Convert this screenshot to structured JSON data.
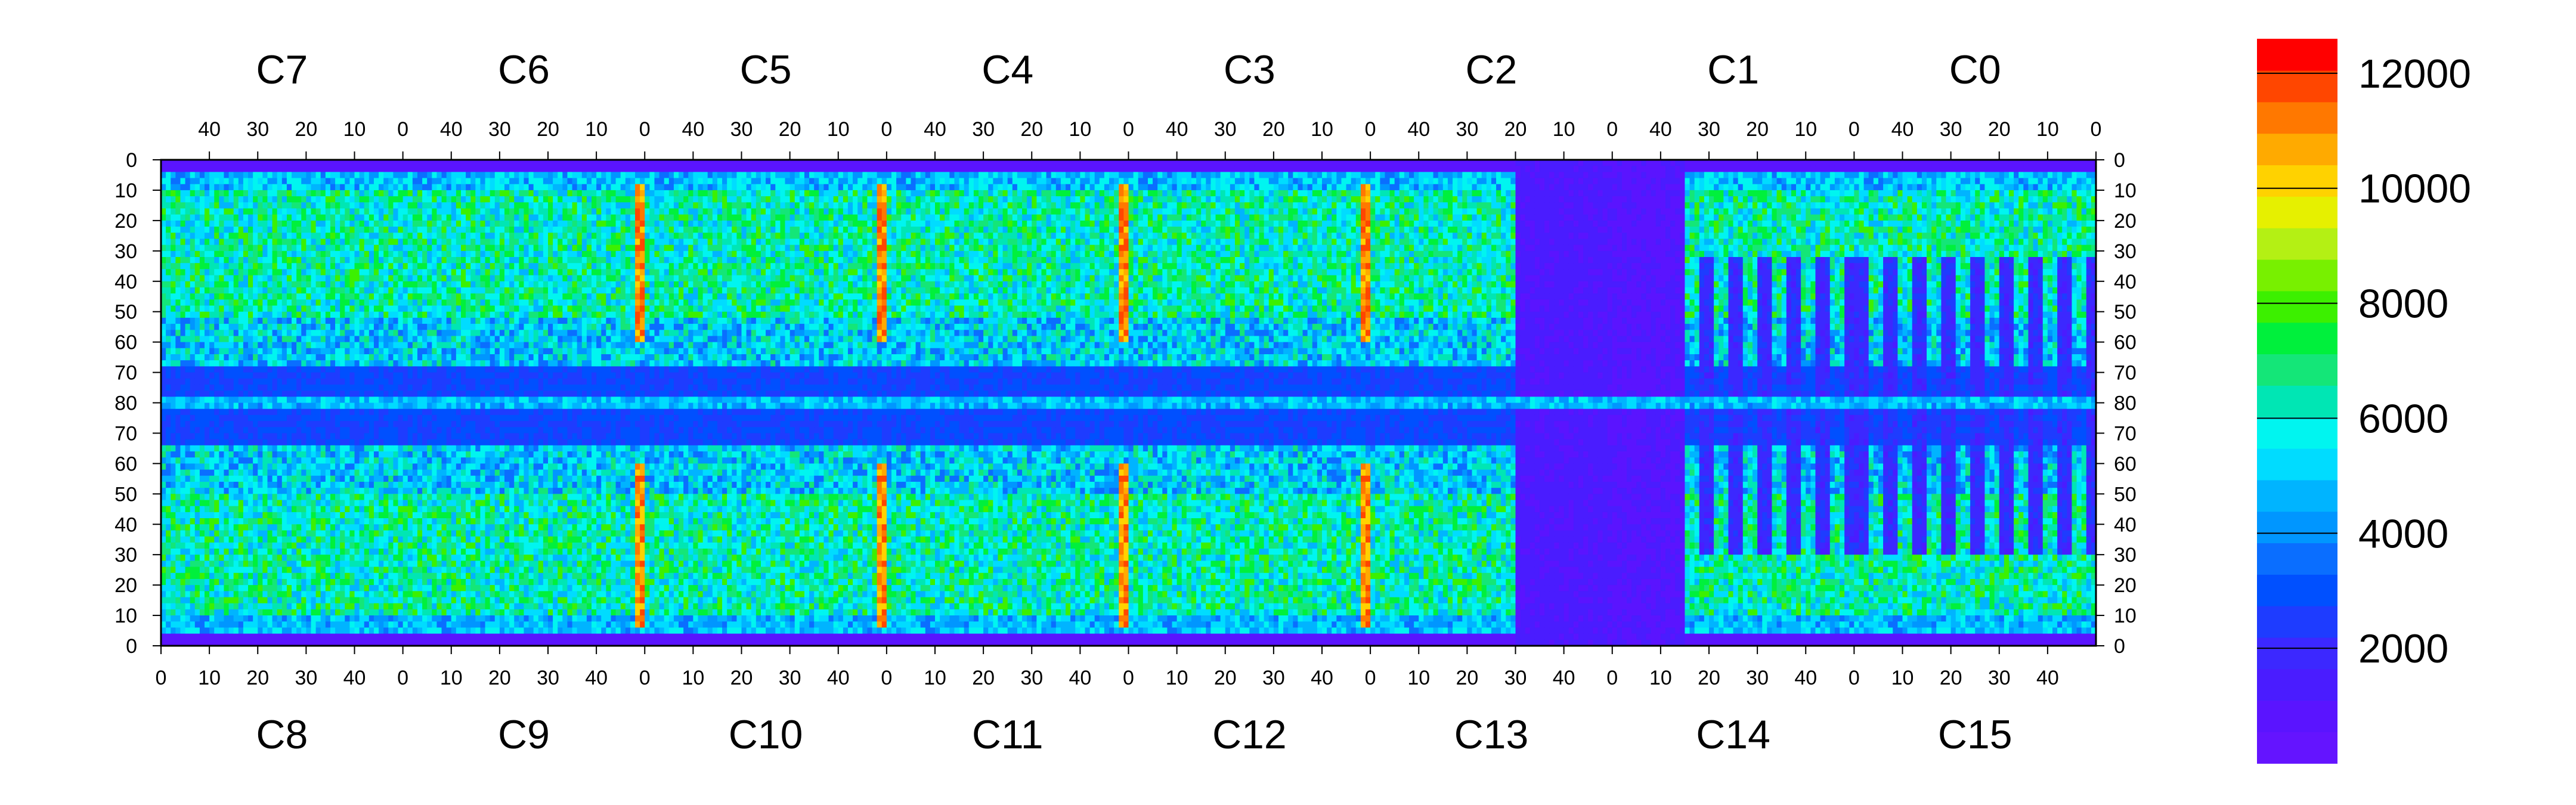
{
  "chart_data": {
    "type": "heatmap",
    "title": "",
    "xlabel": "",
    "ylabel": "",
    "top_panels": [
      "C7",
      "C6",
      "C5",
      "C4",
      "C3",
      "C2",
      "C1",
      "C0"
    ],
    "bottom_panels": [
      "C8",
      "C9",
      "C10",
      "C11",
      "C12",
      "C13",
      "C14",
      "C15"
    ],
    "top_x_ticks": [
      "40",
      "30",
      "20",
      "10",
      "0"
    ],
    "bottom_x_ticks": [
      "0",
      "10",
      "20",
      "30",
      "40"
    ],
    "top_x_range": [
      50,
      0
    ],
    "bottom_x_range": [
      0,
      50
    ],
    "y_ticks_top_half": [
      "0",
      "10",
      "20",
      "30",
      "40",
      "50",
      "60",
      "70",
      "80"
    ],
    "y_ticks_bottom_half": [
      "70",
      "60",
      "50",
      "40",
      "30",
      "20",
      "10",
      "0"
    ],
    "y_range": [
      0,
      80
    ],
    "colorbar": {
      "range": [
        0,
        12600
      ],
      "ticks": [
        "2000",
        "4000",
        "6000",
        "8000",
        "10000",
        "12000"
      ],
      "tick_values": [
        2000,
        4000,
        6000,
        8000,
        10000,
        12000
      ],
      "levels": 20,
      "colors": [
        "#6414ff",
        "#5a14ff",
        "#4a1cff",
        "#3c28ff",
        "#1e3cff",
        "#0050ff",
        "#0a6eff",
        "#0096ff",
        "#00b4ff",
        "#00dcff",
        "#00f5f0",
        "#00e6b4",
        "#14e678",
        "#00f03c",
        "#3cf000",
        "#78f000",
        "#b4f014",
        "#e6f000",
        "#ffd200",
        "#ffaa00",
        "#ff7800",
        "#ff4600",
        "#ff0000"
      ]
    },
    "cell_values_description_free": true,
    "regions": {
      "baseline": 4500,
      "upper_band_y": [
        10,
        60
      ],
      "lower_band_y": [
        10,
        60
      ],
      "middle_band_y": [
        60,
        100
      ],
      "hot_column_level": 12000,
      "low_block_level": 500
    }
  }
}
